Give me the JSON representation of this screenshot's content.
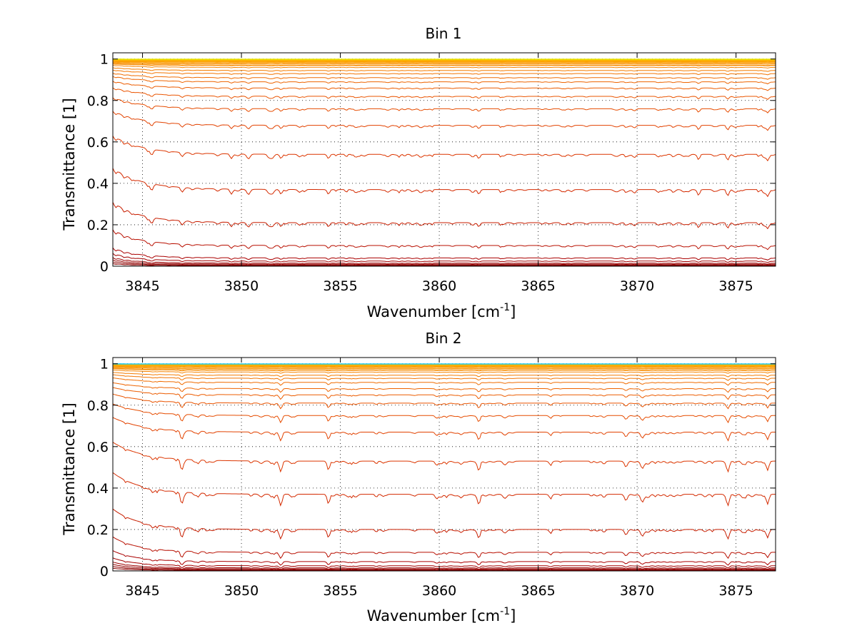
{
  "chart_data": [
    {
      "type": "line",
      "title": "Bin 1",
      "xlabel": "Wavenumber [cm",
      "xlabel_sup": "-1",
      "xlabel_end": "]",
      "ylabel": "Transmittance [1]",
      "xlim": [
        3843.5,
        3877
      ],
      "ylim": [
        0,
        1.03
      ],
      "xticks": [
        3845,
        3850,
        3855,
        3860,
        3865,
        3870,
        3875
      ],
      "xtick_labels": [
        "3845",
        "3850",
        "3855",
        "3860",
        "3865",
        "3870",
        "3875"
      ],
      "yticks": [
        0,
        0.2,
        0.4,
        0.6,
        0.8,
        1
      ],
      "ytick_labels": [
        "0",
        "0.2",
        "0.4",
        "0.6",
        "0.8",
        "1"
      ],
      "grid": true,
      "series_levels": [
        0.003,
        0.006,
        0.01,
        0.015,
        0.025,
        0.04,
        0.1,
        0.21,
        0.37,
        0.54,
        0.68,
        0.76,
        0.82,
        0.86,
        0.89,
        0.91,
        0.93,
        0.945,
        0.96,
        0.97,
        0.978,
        0.985,
        0.99,
        0.994,
        0.997,
        0.999
      ],
      "series_colors": [
        "#8b0000",
        "#8b0000",
        "#940000",
        "#9a0000",
        "#a20000",
        "#aa0000",
        "#b80f00",
        "#c81e00",
        "#d42a00",
        "#dc3600",
        "#e24200",
        "#e64c00",
        "#ea5400",
        "#ec5c00",
        "#ee6400",
        "#f06c00",
        "#f27400",
        "#f47c00",
        "#f68400",
        "#f88c00",
        "#fa9400",
        "#fb9c00",
        "#fca600",
        "#fcb000",
        "#fcc000",
        "#e6e600"
      ]
    },
    {
      "type": "line",
      "title": "Bin 2",
      "xlabel": "Wavenumber [cm",
      "xlabel_sup": "-1",
      "xlabel_end": "]",
      "ylabel": "Transmittance [1]",
      "xlim": [
        3843.5,
        3877
      ],
      "ylim": [
        0,
        1.03
      ],
      "xticks": [
        3845,
        3850,
        3855,
        3860,
        3865,
        3870,
        3875
      ],
      "xtick_labels": [
        "3845",
        "3850",
        "3855",
        "3860",
        "3865",
        "3870",
        "3875"
      ],
      "yticks": [
        0,
        0.2,
        0.4,
        0.6,
        0.8,
        1
      ],
      "ytick_labels": [
        "0",
        "0.2",
        "0.4",
        "0.6",
        "0.8",
        "1"
      ],
      "grid": true,
      "series_levels": [
        0.003,
        0.006,
        0.01,
        0.015,
        0.025,
        0.045,
        0.09,
        0.2,
        0.37,
        0.53,
        0.67,
        0.75,
        0.81,
        0.85,
        0.88,
        0.91,
        0.93,
        0.945,
        0.96,
        0.97,
        0.978,
        0.985,
        0.99,
        0.994,
        0.997,
        0.999
      ],
      "series_colors": [
        "#8b0000",
        "#8b0000",
        "#940000",
        "#9a0000",
        "#a20000",
        "#aa0000",
        "#b80f00",
        "#c81e00",
        "#d42a00",
        "#dc3600",
        "#e24200",
        "#e64c00",
        "#ea5400",
        "#ec5c00",
        "#ee6400",
        "#f06c00",
        "#f27400",
        "#f47c00",
        "#f68400",
        "#f88c00",
        "#fa9400",
        "#fb9c00",
        "#fca600",
        "#fcb000",
        "#fcc000",
        "#22ccee"
      ]
    }
  ]
}
